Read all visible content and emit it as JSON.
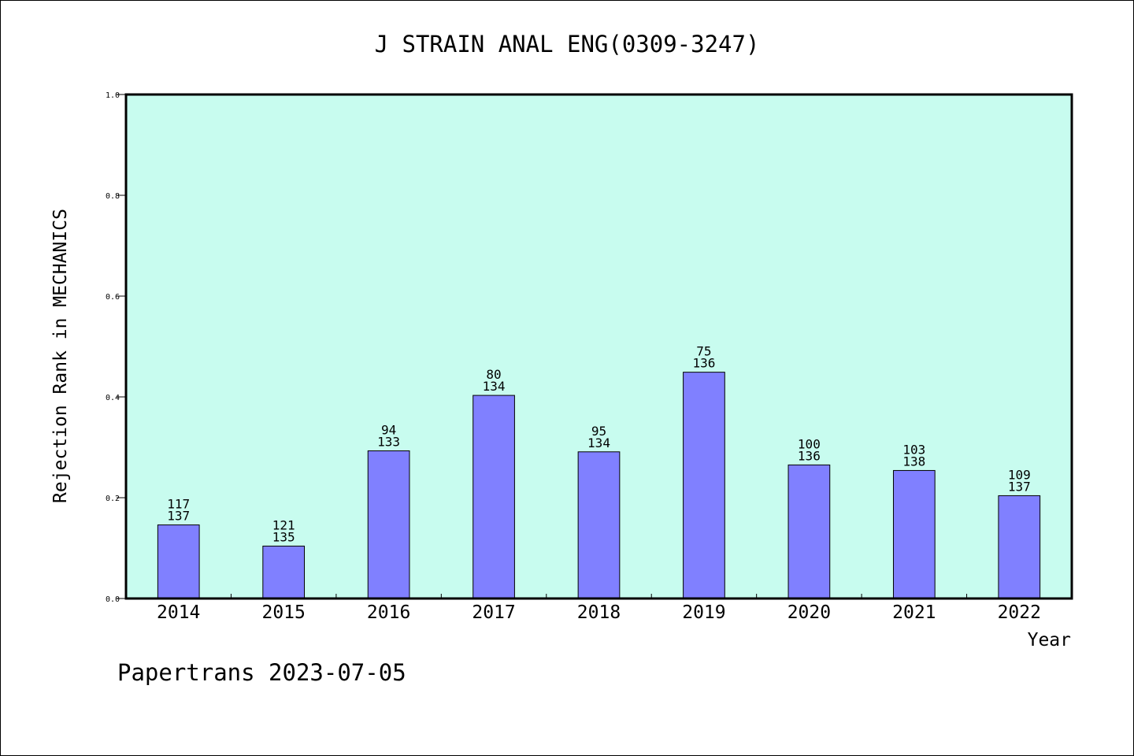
{
  "chart_data": {
    "type": "bar",
    "title": "J STRAIN ANAL ENG(0309-3247)",
    "ylabel": "Rejection Rank in MECHANICS",
    "xlabel": "Year",
    "ylim": [
      0,
      1.0
    ],
    "yticks": [
      "0.0",
      "0.2",
      "0.4",
      "0.6",
      "0.8",
      "1.0"
    ],
    "categories": [
      "2014",
      "2015",
      "2016",
      "2017",
      "2018",
      "2019",
      "2020",
      "2021",
      "2022"
    ],
    "values": [
      0.146,
      0.104,
      0.293,
      0.403,
      0.291,
      0.449,
      0.265,
      0.254,
      0.204
    ],
    "labels_top": [
      "117",
      "121",
      "94",
      "80",
      "95",
      "75",
      "100",
      "103",
      "109"
    ],
    "labels_bottom": [
      "137",
      "135",
      "133",
      "134",
      "134",
      "136",
      "136",
      "138",
      "137"
    ],
    "plot_background": "#c8fcef",
    "bar_color": "#8080ff",
    "grid": false
  },
  "footer": "Papertrans 2023-07-05"
}
